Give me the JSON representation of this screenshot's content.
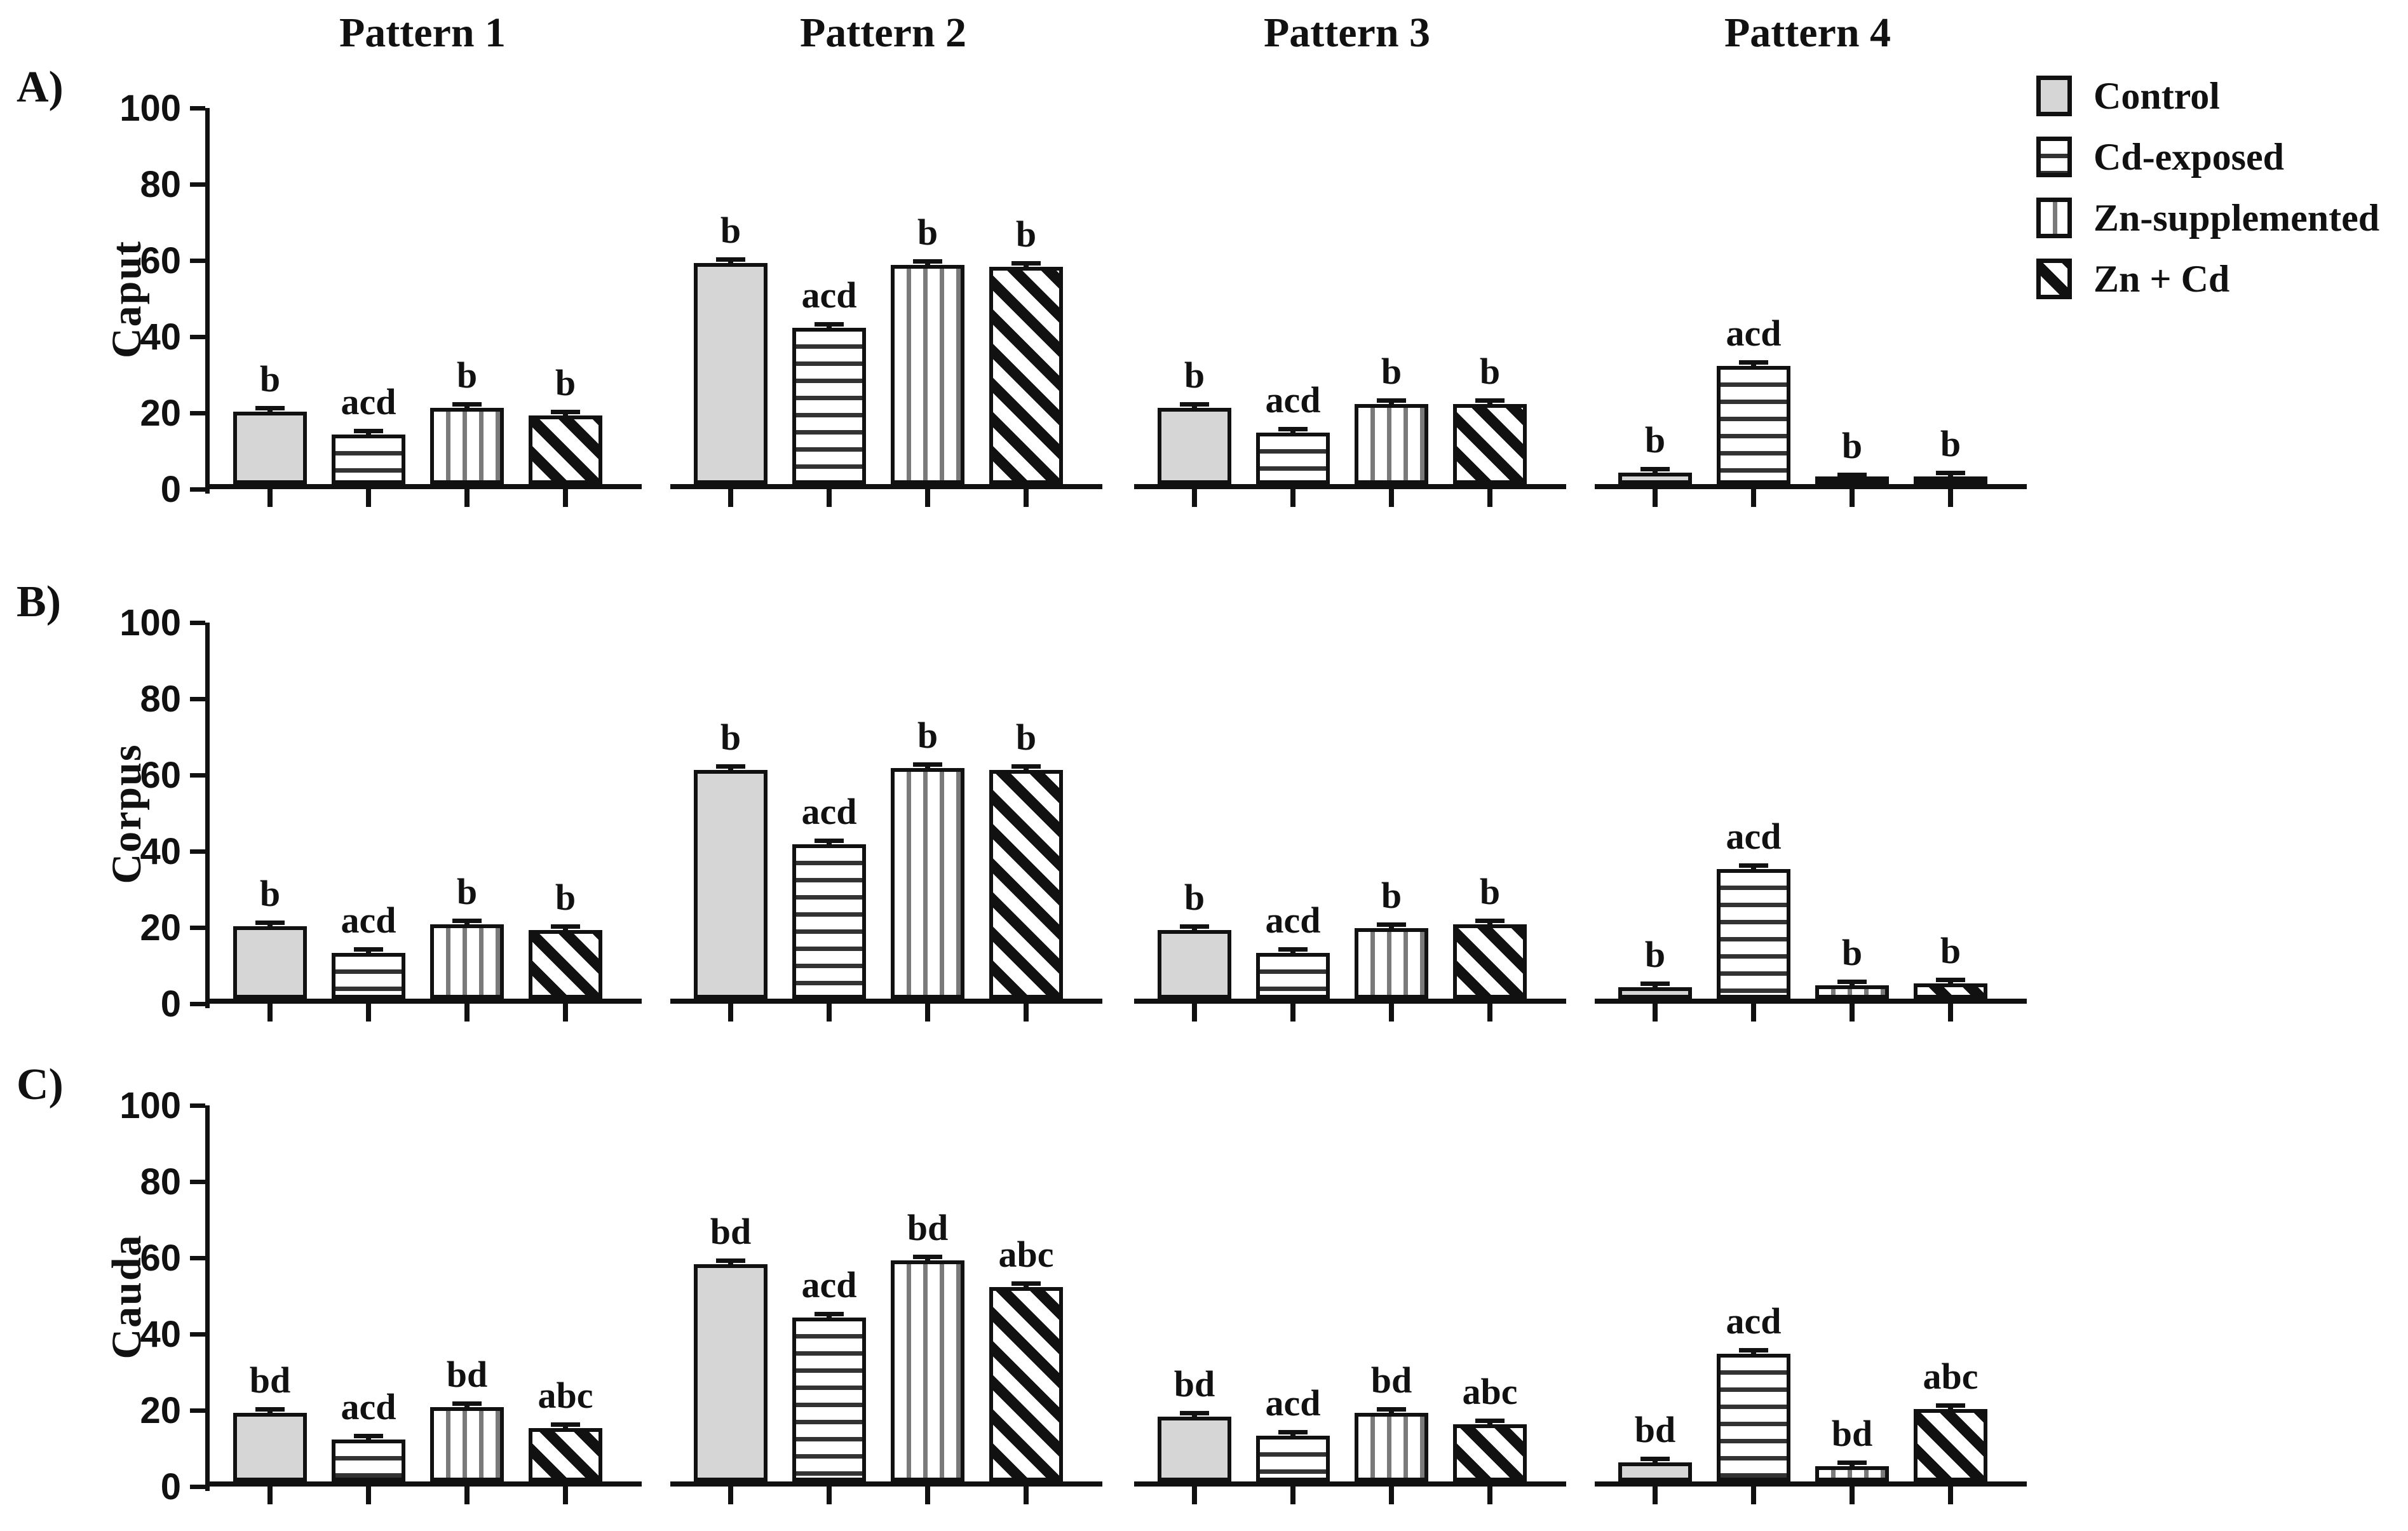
{
  "figure": {
    "column_headers": [
      "Pattern 1",
      "Pattern 2",
      "Pattern 3",
      "Pattern 4"
    ],
    "legend": [
      {
        "label": "Control",
        "pattern": "solid-gray"
      },
      {
        "label": "Cd-exposed",
        "pattern": "horizontal-stripes"
      },
      {
        "label": "Zn-supplemented",
        "pattern": "vertical-stripes"
      },
      {
        "label": "Zn + Cd",
        "pattern": "diagonal-stripes"
      }
    ],
    "colors": {
      "ink": "#111111",
      "control_fill": "#d6d6d6",
      "background": "#ffffff"
    }
  },
  "chart_data": {
    "type": "bar",
    "groups": [
      "Pattern 1",
      "Pattern 2",
      "Pattern 3",
      "Pattern 4"
    ],
    "series": [
      "Control",
      "Cd-exposed",
      "Zn-supplemented",
      "Zn + Cd"
    ],
    "ylim": [
      0,
      100
    ],
    "yticks": [
      0,
      20,
      40,
      60,
      80,
      100
    ],
    "grid": false,
    "legend_position": "top-right",
    "rows": [
      {
        "letter": "A)",
        "ylabel": "Caput",
        "patterns": [
          {
            "group": "Pattern 1",
            "values": [
              19,
              13,
              20,
              18
            ],
            "errors": [
              1,
              1,
              1,
              1
            ],
            "sig": [
              "b",
              "acd",
              "b",
              "b"
            ]
          },
          {
            "group": "Pattern 2",
            "values": [
              58,
              41,
              57.5,
              57
            ],
            "errors": [
              1,
              1,
              1,
              1
            ],
            "sig": [
              "b",
              "acd",
              "b",
              "b"
            ]
          },
          {
            "group": "Pattern 3",
            "values": [
              20,
              13.5,
              21,
              21
            ],
            "errors": [
              1,
              1,
              1,
              1
            ],
            "sig": [
              "b",
              "acd",
              "b",
              "b"
            ]
          },
          {
            "group": "Pattern 4",
            "values": [
              3,
              31,
              1.5,
              2
            ],
            "errors": [
              1,
              1,
              1,
              1
            ],
            "sig": [
              "b",
              "acd",
              "b",
              "b"
            ]
          }
        ]
      },
      {
        "letter": "B)",
        "ylabel": "Corpus",
        "patterns": [
          {
            "group": "Pattern 1",
            "values": [
              19,
              12,
              19.5,
              18
            ],
            "errors": [
              1,
              1,
              1,
              1
            ],
            "sig": [
              "b",
              "acd",
              "b",
              "b"
            ]
          },
          {
            "group": "Pattern 2",
            "values": [
              60,
              40.5,
              60.5,
              60
            ],
            "errors": [
              1,
              1,
              1,
              1
            ],
            "sig": [
              "b",
              "acd",
              "b",
              "b"
            ]
          },
          {
            "group": "Pattern 3",
            "values": [
              18,
              12,
              18.5,
              19.5
            ],
            "errors": [
              1,
              1,
              1,
              1
            ],
            "sig": [
              "b",
              "acd",
              "b",
              "b"
            ]
          },
          {
            "group": "Pattern 4",
            "values": [
              3,
              34,
              3.5,
              4
            ],
            "errors": [
              1,
              1,
              1,
              1
            ],
            "sig": [
              "b",
              "acd",
              "b",
              "b"
            ]
          }
        ]
      },
      {
        "letter": "C)",
        "ylabel": "Cauda",
        "patterns": [
          {
            "group": "Pattern 1",
            "values": [
              18,
              11,
              19.5,
              14
            ],
            "errors": [
              1,
              1,
              1,
              1
            ],
            "sig": [
              "bd",
              "acd",
              "bd",
              "abc"
            ]
          },
          {
            "group": "Pattern 2",
            "values": [
              57,
              43,
              58,
              51
            ],
            "errors": [
              1,
              1,
              1,
              1
            ],
            "sig": [
              "bd",
              "acd",
              "bd",
              "abc"
            ]
          },
          {
            "group": "Pattern 3",
            "values": [
              17,
              12,
              18,
              15
            ],
            "errors": [
              1,
              1,
              1,
              1
            ],
            "sig": [
              "bd",
              "acd",
              "bd",
              "abc"
            ]
          },
          {
            "group": "Pattern 4",
            "values": [
              5,
              33.5,
              4,
              19
            ],
            "errors": [
              1,
              1,
              1,
              1
            ],
            "sig": [
              "bd",
              "acd",
              "bd",
              "abc"
            ]
          }
        ]
      }
    ]
  }
}
